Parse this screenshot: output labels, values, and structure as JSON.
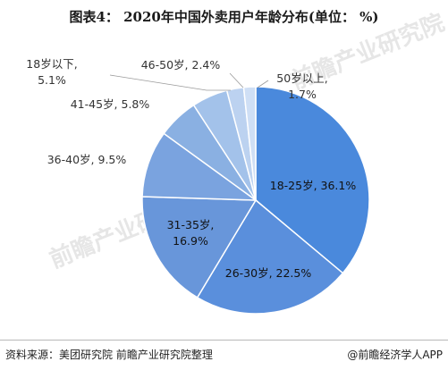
{
  "title": "图表4： 2020年中国外卖用户年龄分布(单位： %)",
  "source": "资料来源：美团研究院 前瞻产业研究院整理",
  "credit": "@前瞻经济学人APP",
  "watermark": "前瞻产业研究院",
  "colors": {
    "slice": [
      "#4a89dc",
      "#5a8fdc",
      "#6896da",
      "#7aa3df",
      "#8ab0e2",
      "#a3c2ea",
      "#bcd2f0",
      "#cfdff5"
    ],
    "stroke": "#ffffff"
  },
  "chart_data": {
    "type": "pie",
    "title": "2020年中国外卖用户年龄分布(单位： %)",
    "unit": "%",
    "slices": [
      {
        "label": "18-25岁, 36.1%",
        "category": "18-25岁",
        "value": 36.1
      },
      {
        "label": "26-30岁, 22.5%",
        "category": "26-30岁",
        "value": 22.5
      },
      {
        "label": "31-35岁,\n16.9%",
        "category": "31-35岁",
        "value": 16.9
      },
      {
        "label": "36-40岁, 9.5%",
        "category": "36-40岁",
        "value": 9.5
      },
      {
        "label": "41-45岁, 5.8%",
        "category": "41-45岁",
        "value": 5.8
      },
      {
        "label": "18岁以下,\n5.1%",
        "category": "18岁以下",
        "value": 5.1
      },
      {
        "label": "46-50岁, 2.4%",
        "category": "46-50岁",
        "value": 2.4
      },
      {
        "label": "50岁以上,\n1.7%",
        "category": "50岁以上",
        "value": 1.7
      }
    ]
  }
}
